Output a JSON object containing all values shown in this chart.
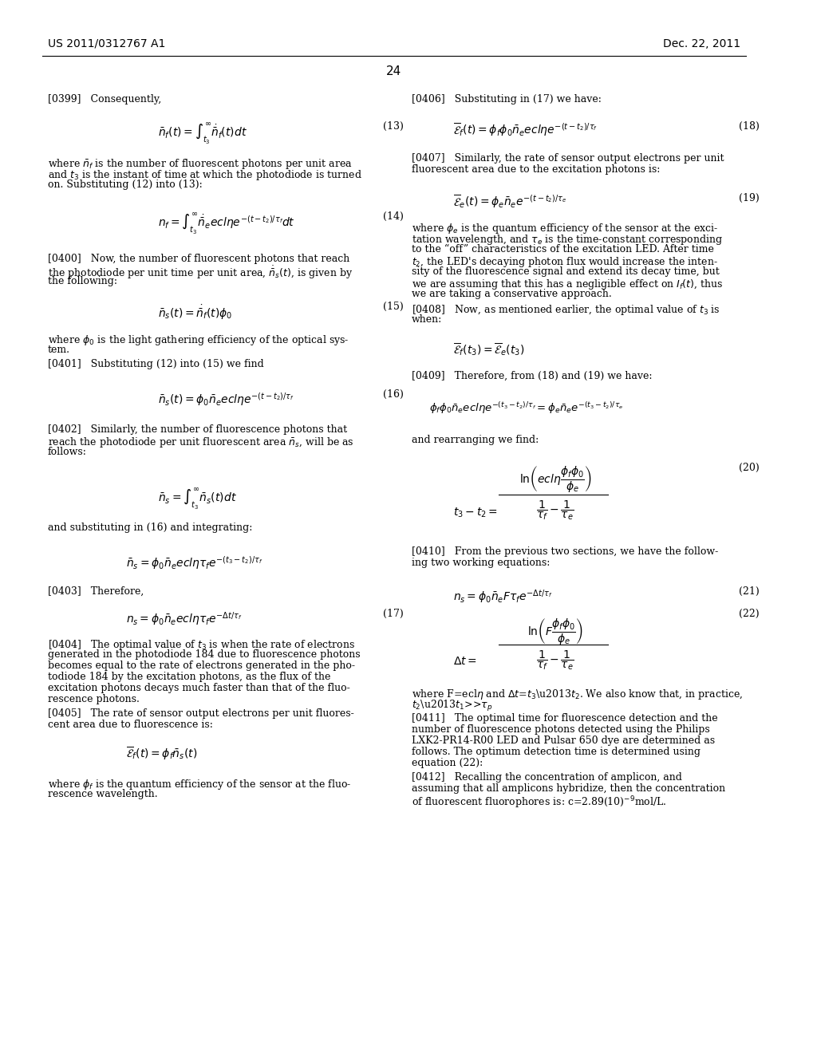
{
  "bg_color": "#ffffff",
  "text_color": "#000000",
  "header_left": "US 2011/0312767 A1",
  "header_right": "Dec. 22, 2011",
  "page_number": "24"
}
